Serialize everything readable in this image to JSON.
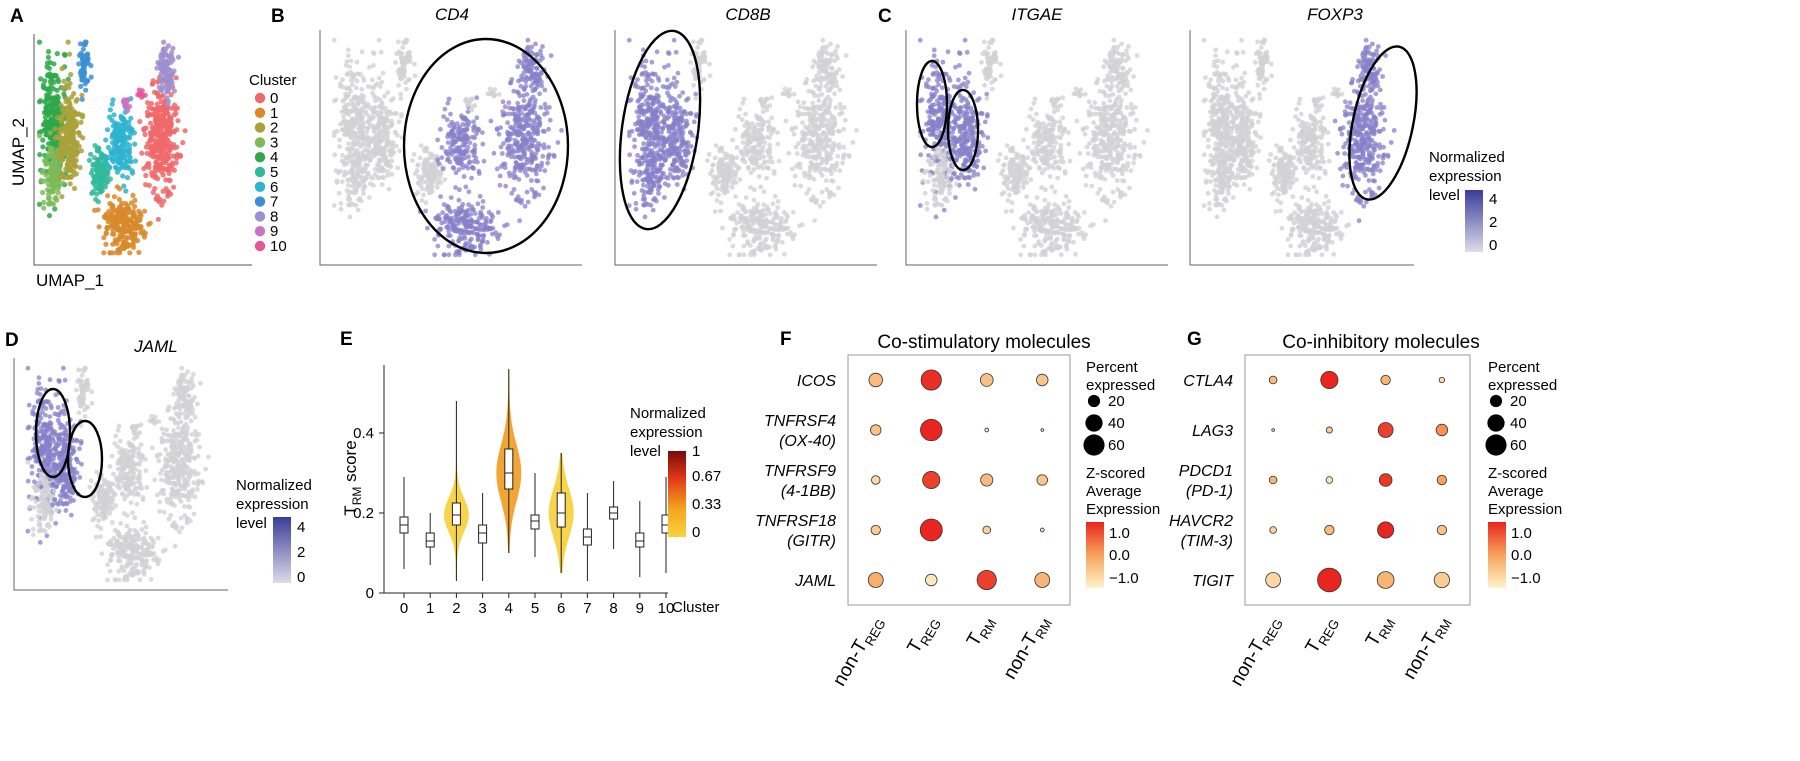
{
  "panel_letters": [
    "A",
    "B",
    "C",
    "D",
    "E",
    "F",
    "G"
  ],
  "chart_data": [
    {
      "panel": "A",
      "type": "scatter",
      "title": "",
      "xlabel": "UMAP_1",
      "ylabel": "UMAP_2",
      "legend_title": "Cluster",
      "clusters": [
        {
          "name": "0",
          "color": "#F0696A"
        },
        {
          "name": "1",
          "color": "#D88A2A"
        },
        {
          "name": "2",
          "color": "#A9A13A"
        },
        {
          "name": "3",
          "color": "#7DBB5A"
        },
        {
          "name": "4",
          "color": "#2EA84A"
        },
        {
          "name": "5",
          "color": "#33B99B"
        },
        {
          "name": "6",
          "color": "#2EB3D0"
        },
        {
          "name": "7",
          "color": "#3C8FD6"
        },
        {
          "name": "8",
          "color": "#9D8FD0"
        },
        {
          "name": "9",
          "color": "#C873C8"
        },
        {
          "name": "10",
          "color": "#E9559B"
        }
      ]
    },
    {
      "panel": "B/C/D",
      "type": "scatter",
      "feature_plots": [
        {
          "panel": "B",
          "gene": "CD4",
          "highlight_clusters": [
            "0",
            "1",
            "6",
            "8"
          ]
        },
        {
          "panel": "B",
          "gene": "CD8B",
          "highlight_clusters": [
            "2",
            "3",
            "4"
          ]
        },
        {
          "panel": "C",
          "gene": "ITGAE",
          "highlight_clusters": [
            "2",
            "4"
          ]
        },
        {
          "panel": "C",
          "gene": "FOXP3",
          "highlight_clusters": [
            "0",
            "8"
          ]
        },
        {
          "panel": "D",
          "gene": "JAML",
          "highlight_clusters": [
            "2",
            "4"
          ]
        }
      ],
      "colorbar": {
        "title_lines": [
          "Normalized",
          "expression",
          "level"
        ],
        "ticks": [
          "4",
          "2",
          "0"
        ],
        "colors": [
          "#d9d9e8",
          "#3a3d9a"
        ]
      }
    },
    {
      "panel": "E",
      "type": "violin",
      "ylabel_main": "T",
      "ylabel_sub": "RM",
      "ylabel_rest": " score",
      "xlabel": "Cluster",
      "ylim": [
        0,
        0.57
      ],
      "yticks": [
        0,
        0.2,
        0.4
      ],
      "ytick_labels": [
        "0",
        "0.2",
        "0.4"
      ],
      "categories": [
        "0",
        "1",
        "2",
        "3",
        "4",
        "5",
        "6",
        "7",
        "8",
        "9",
        "10"
      ],
      "median": [
        0.17,
        0.13,
        0.195,
        0.15,
        0.3,
        0.18,
        0.2,
        0.14,
        0.2,
        0.13,
        0.17
      ],
      "q1": [
        0.15,
        0.115,
        0.17,
        0.125,
        0.26,
        0.16,
        0.165,
        0.12,
        0.185,
        0.115,
        0.15
      ],
      "q3": [
        0.19,
        0.15,
        0.225,
        0.17,
        0.36,
        0.195,
        0.25,
        0.16,
        0.215,
        0.15,
        0.195
      ],
      "min": [
        0.06,
        0.07,
        0.03,
        0.03,
        0.1,
        0.09,
        0.05,
        0.03,
        0.11,
        0.04,
        0.05
      ],
      "max": [
        0.29,
        0.2,
        0.48,
        0.25,
        0.56,
        0.3,
        0.35,
        0.25,
        0.28,
        0.23,
        0.29
      ],
      "expression": [
        0.0,
        0.0,
        0.15,
        0.0,
        0.45,
        0.0,
        0.15,
        0.0,
        0.0,
        0.0,
        0.0
      ],
      "colorbar": {
        "title_lines": [
          "Normalized",
          "expression",
          "level"
        ],
        "ticks": [
          "1",
          "0.67",
          "0.33",
          "0"
        ]
      }
    },
    {
      "panel": "F",
      "type": "scatter",
      "subtype": "dotplot",
      "title": "Co-stimulatory molecules",
      "rows": [
        {
          "lines": [
            "ICOS"
          ]
        },
        {
          "lines": [
            "TNFRSF4",
            "(OX-40)"
          ]
        },
        {
          "lines": [
            "TNFRSF9",
            "(4-1BB)"
          ]
        },
        {
          "lines": [
            "TNFRSF18",
            "(GITR)"
          ]
        },
        {
          "lines": [
            "JAML"
          ]
        }
      ],
      "columns": [
        {
          "main": "non-T",
          "sub": "REG"
        },
        {
          "main": "T",
          "sub": "REG"
        },
        {
          "main": "T",
          "sub": "RM"
        },
        {
          "main": "non-T",
          "sub": "RM"
        }
      ],
      "percent_expressed": [
        [
          25,
          55,
          22,
          18
        ],
        [
          15,
          62,
          2,
          1
        ],
        [
          10,
          40,
          20,
          15
        ],
        [
          12,
          65,
          8,
          2
        ],
        [
          30,
          18,
          50,
          30
        ]
      ],
      "zscore": [
        [
          -0.3,
          1.4,
          -0.4,
          -0.5
        ],
        [
          -0.4,
          1.5,
          -0.9,
          -1.0
        ],
        [
          -0.8,
          1.2,
          -0.3,
          -0.5
        ],
        [
          -0.6,
          1.5,
          -0.7,
          -0.9
        ],
        [
          -0.1,
          -1.1,
          1.2,
          -0.2
        ]
      ],
      "size_legend": {
        "title_lines": [
          "Percent",
          "expressed"
        ],
        "labels": [
          "20",
          "40",
          "60"
        ],
        "values": [
          20,
          40,
          60
        ]
      },
      "color_legend": {
        "title_lines": [
          "Z-scored",
          "Average",
          "Expression"
        ],
        "ticks": [
          "1.0",
          "0.0",
          "−1.0"
        ],
        "range": [
          -1.3,
          1.5
        ]
      }
    },
    {
      "panel": "G",
      "type": "scatter",
      "subtype": "dotplot",
      "title": "Co-inhibitory molecules",
      "rows": [
        {
          "lines": [
            "CTLA4"
          ]
        },
        {
          "lines": [
            "LAG3"
          ]
        },
        {
          "lines": [
            "PDCD1",
            "(PD-1)"
          ]
        },
        {
          "lines": [
            "HAVCR2",
            "(TIM-3)"
          ]
        },
        {
          "lines": [
            "TIGIT"
          ]
        }
      ],
      "columns": [
        {
          "main": "non-T",
          "sub": "REG"
        },
        {
          "main": "T",
          "sub": "REG"
        },
        {
          "main": "T",
          "sub": "RM"
        },
        {
          "main": "non-T",
          "sub": "RM"
        }
      ],
      "percent_expressed": [
        [
          8,
          40,
          12,
          4
        ],
        [
          1,
          5,
          30,
          18
        ],
        [
          8,
          6,
          22,
          12
        ],
        [
          6,
          12,
          35,
          12
        ],
        [
          30,
          75,
          38,
          32
        ]
      ],
      "zscore": [
        [
          -0.3,
          1.5,
          -0.2,
          -0.9
        ],
        [
          -0.8,
          -0.6,
          1.2,
          0.3
        ],
        [
          -0.2,
          -1.0,
          1.3,
          0.1
        ],
        [
          -0.7,
          -0.3,
          1.5,
          -0.4
        ],
        [
          -0.8,
          1.5,
          -0.2,
          -0.6
        ]
      ],
      "size_legend": {
        "title_lines": [
          "Percent",
          "expressed"
        ],
        "labels": [
          "20",
          "40",
          "60"
        ],
        "values": [
          20,
          40,
          60
        ]
      },
      "color_legend": {
        "title_lines": [
          "Z-scored",
          "Average",
          "Expression"
        ],
        "ticks": [
          "1.0",
          "0.0",
          "−1.0"
        ],
        "range": [
          -1.3,
          1.5
        ]
      }
    }
  ]
}
